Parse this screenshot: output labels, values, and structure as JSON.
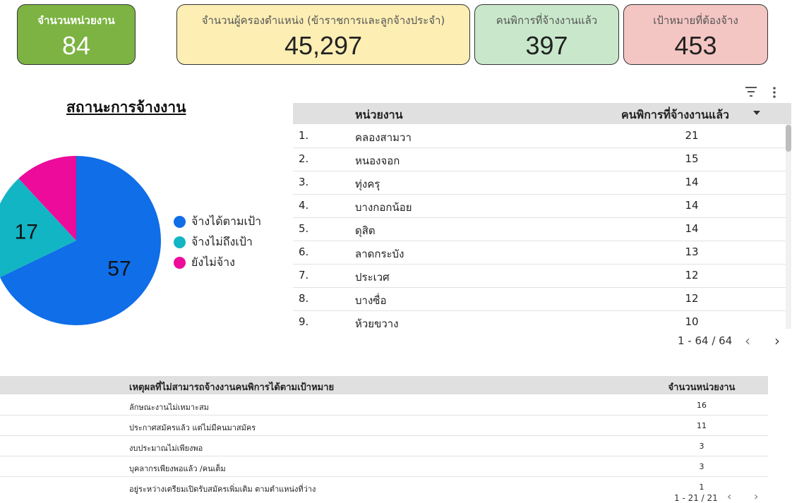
{
  "kpis": [
    {
      "label": "จำนวนหน่วยงาน",
      "value": "84",
      "color": "#7cb342"
    },
    {
      "label": "จำนวนผู้ครองตำแหน่ง (ข้าราชการและลูกจ้างประจำ)",
      "value": "45,297",
      "color": "#fdeeb4"
    },
    {
      "label": "คนพิการที่จ้างงานแล้ว",
      "value": "397",
      "color": "#c9e8cb"
    },
    {
      "label": "เป้าหมายที่ต้องจ้าง",
      "value": "453",
      "color": "#f4c6c3"
    }
  ],
  "chart_data": {
    "type": "pie",
    "title": "สถานะการจ้างงาน",
    "slices": [
      {
        "label": "จ้างได้ตามเป้า",
        "value": 57,
        "color": "#0f6ee8"
      },
      {
        "label": "จ้างไม่ถึงเป้า",
        "value": 17,
        "color": "#12b5c4"
      },
      {
        "label": "ยังไม่จ้าง",
        "value": 10,
        "color": "#ec0b9a"
      }
    ],
    "data_labels_shown": [
      "57",
      "17"
    ],
    "legend_position": "right"
  },
  "table1": {
    "headers": [
      "หน่วยงาน",
      "คนพิการที่จ้างงานแล้ว"
    ],
    "rows": [
      {
        "idx": "1.",
        "name": "คลองสามวา",
        "count": "21"
      },
      {
        "idx": "2.",
        "name": "หนองจอก",
        "count": "15"
      },
      {
        "idx": "3.",
        "name": "ทุ่งครุ",
        "count": "14"
      },
      {
        "idx": "4.",
        "name": "บางกอกน้อย",
        "count": "14"
      },
      {
        "idx": "5.",
        "name": "ดุสิต",
        "count": "14"
      },
      {
        "idx": "6.",
        "name": "ลาดกระบัง",
        "count": "13"
      },
      {
        "idx": "7.",
        "name": "ประเวศ",
        "count": "12"
      },
      {
        "idx": "8.",
        "name": "บางซื่อ",
        "count": "12"
      },
      {
        "idx": "9.",
        "name": "ห้วยขวาง",
        "count": "10"
      }
    ],
    "pagination": "1 - 64 / 64",
    "sort_icon": "triangle-down-icon"
  },
  "table2": {
    "headers": [
      "เหตุผลที่ไม่สามารถจ้างงานคนพิการได้ตามเป้าหมาย",
      "จำนวนหน่วยงาน"
    ],
    "rows": [
      {
        "reason": "ลักษณะงานไม่เหมาะสม",
        "count": "16"
      },
      {
        "reason": "ประกาศสมัครแล้ว แต่ไม่มีคนมาสมัคร",
        "count": "11"
      },
      {
        "reason": "งบประมาณไม่เพียงพอ",
        "count": "3"
      },
      {
        "reason": "บุคลากรเพียงพอแล้ว /คนเต็ม",
        "count": "3"
      },
      {
        "reason": "อยู่ระหว่างเตรียมเปิดรับสมัครเพิ่มเติม ตามตำแหน่งที่ว่าง",
        "count": "1"
      }
    ],
    "pagination": "1 - 21 / 21"
  }
}
